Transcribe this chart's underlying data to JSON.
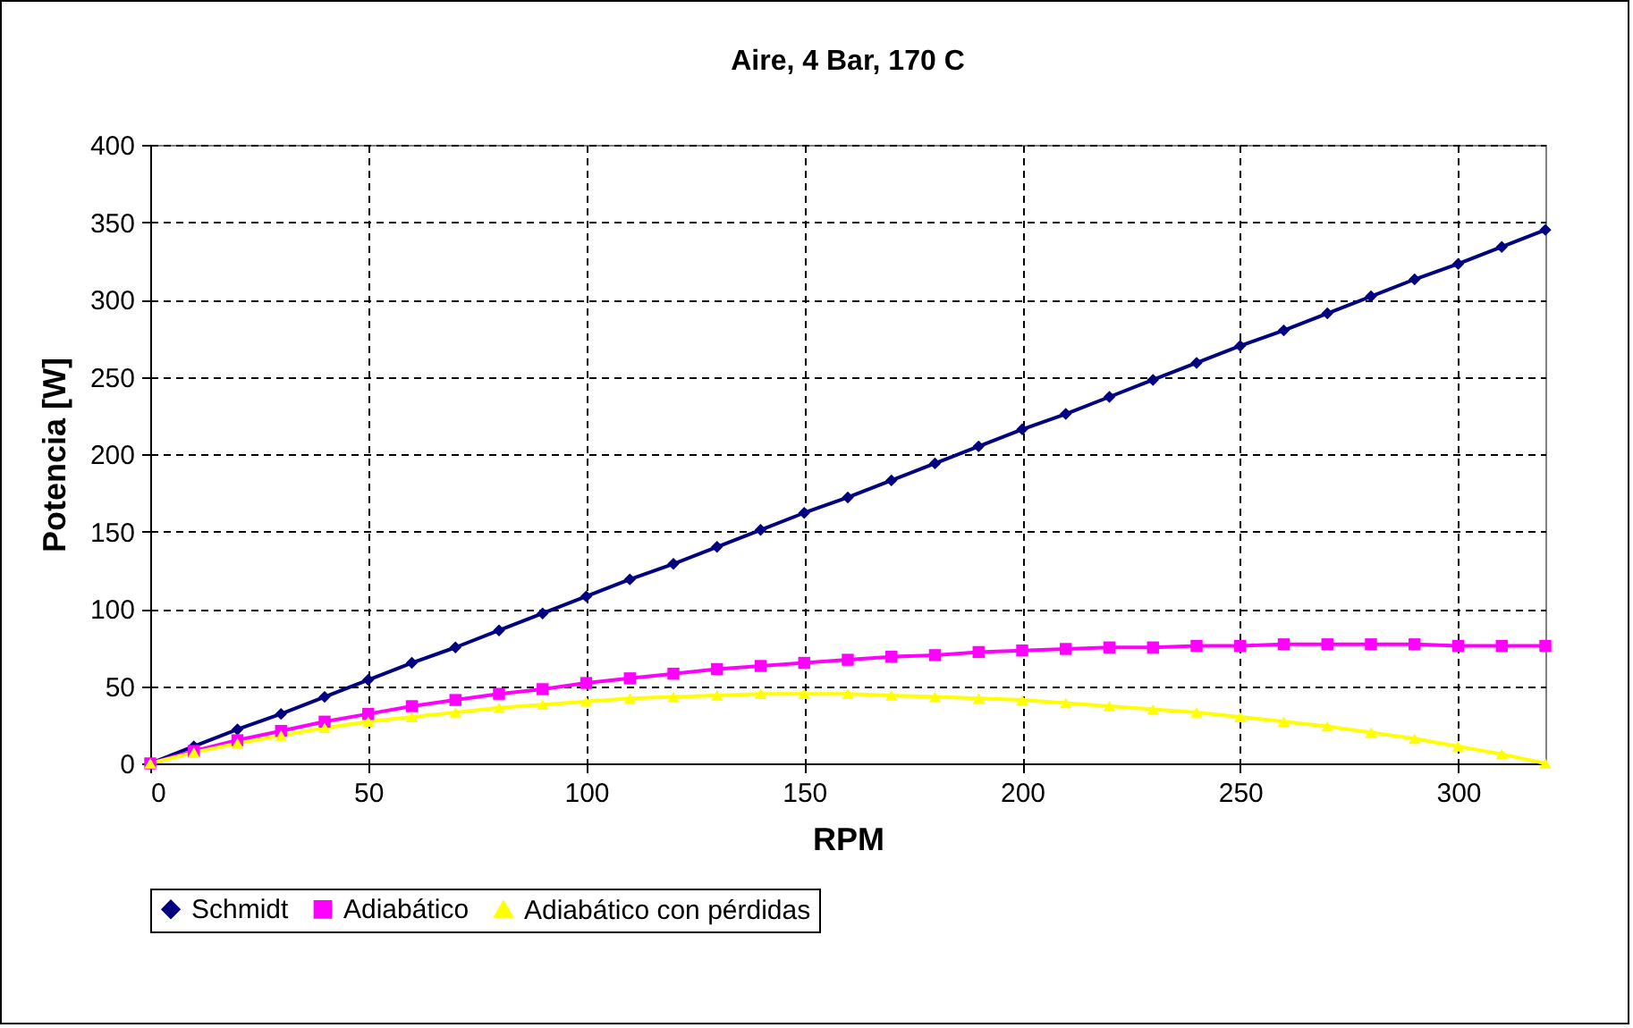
{
  "chart_data": {
    "type": "line",
    "title": "Aire, 4 Bar, 170 C",
    "xlabel": "RPM",
    "ylabel": "Potencia [W]",
    "x": [
      0,
      10,
      20,
      30,
      40,
      50,
      60,
      70,
      80,
      90,
      100,
      110,
      120,
      130,
      140,
      150,
      160,
      170,
      180,
      190,
      200,
      210,
      220,
      230,
      240,
      250,
      260,
      270,
      280,
      290,
      300,
      310,
      320
    ],
    "xlim": [
      0,
      320
    ],
    "xticks": [
      0,
      50,
      100,
      150,
      200,
      250,
      300
    ],
    "ylim": [
      0,
      400
    ],
    "yticks": [
      0,
      50,
      100,
      150,
      200,
      250,
      300,
      350,
      400
    ],
    "grid": true,
    "legend": "bottom",
    "line_style": "solid",
    "series": [
      {
        "name": "Schmidt",
        "color": "#000080",
        "marker": "diamond",
        "values": [
          0,
          11,
          22,
          32,
          43,
          54,
          65,
          75,
          86,
          97,
          108,
          119,
          129,
          140,
          151,
          162,
          172,
          183,
          194,
          205,
          216,
          226,
          237,
          248,
          259,
          270,
          280,
          291,
          302,
          313,
          323,
          334,
          345
        ]
      },
      {
        "name": "Adiabático",
        "color": "#ff00ff",
        "marker": "square",
        "values": [
          0,
          8,
          15,
          21,
          27,
          32,
          37,
          41,
          45,
          48,
          52,
          55,
          58,
          61,
          63,
          65,
          67,
          69,
          70,
          72,
          73,
          74,
          75,
          75,
          76,
          76,
          77,
          77,
          77,
          77,
          76,
          76,
          76
        ]
      },
      {
        "name": "Adiabático con pérdidas",
        "color": "#ffff00",
        "marker": "triangle",
        "values": [
          0,
          7,
          13,
          18,
          23,
          27,
          30,
          33,
          36,
          38,
          40,
          42,
          43,
          44,
          45,
          45,
          45,
          44,
          43,
          42,
          41,
          39,
          37,
          35,
          33,
          30,
          27,
          24,
          20,
          16,
          11,
          6,
          0
        ]
      }
    ]
  }
}
